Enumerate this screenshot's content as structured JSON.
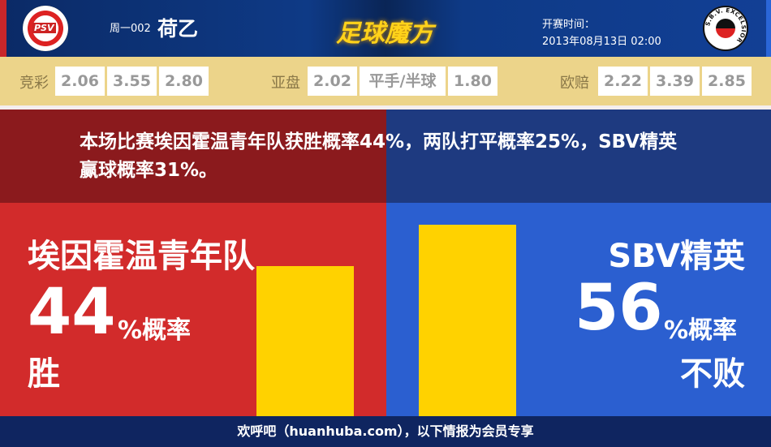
{
  "header": {
    "home_logo_text": "PSV",
    "away_logo_text": "S.B.V. EXCELSIOR",
    "match_no": "周一002",
    "league": "荷乙",
    "brand": "足球魔方",
    "time_label": "开赛时间：",
    "time_value": "2013年08月13日 02:00"
  },
  "odds": {
    "jc_label": "竞彩",
    "jc": [
      "2.06",
      "3.55",
      "2.80"
    ],
    "yp_label": "亚盘",
    "yp": [
      "2.02",
      "平手/半球",
      "1.80"
    ],
    "op_label": "欧赔",
    "op": [
      "2.22",
      "3.39",
      "2.85"
    ]
  },
  "summary": "本场比赛埃因霍温青年队获胜概率44%，两队打平概率25%，SBV精英赢球概率31%。",
  "home": {
    "name": "埃因霍温青年队",
    "pct": "44",
    "pct_unit": "%概率",
    "result": "胜",
    "probability": 44
  },
  "away": {
    "name": "SBV精英",
    "pct": "56",
    "pct_unit": "%概率",
    "result": "不败",
    "probability": 56
  },
  "colors": {
    "home": "#d22b2b",
    "away": "#2b5fd0",
    "bar": "#ffd200"
  },
  "footer": "欢呼吧（huanhuba.com），以下情报为会员专享"
}
